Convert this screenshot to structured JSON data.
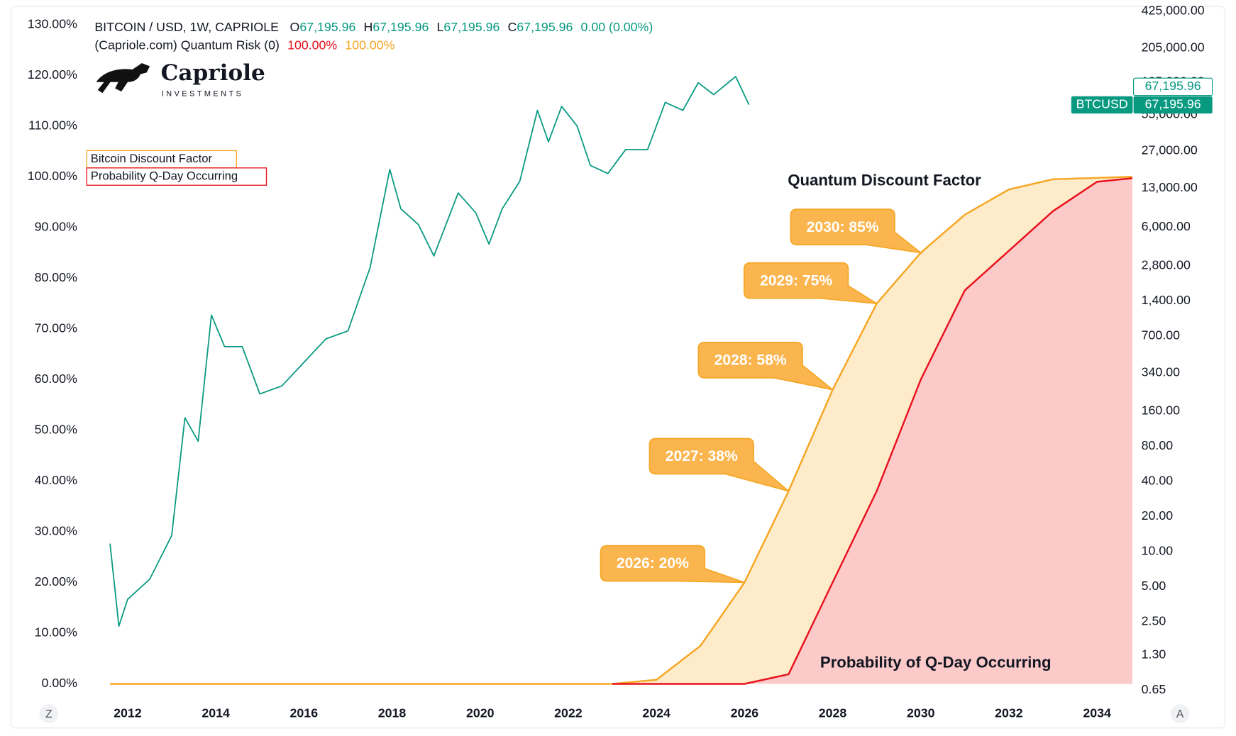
{
  "chart_data": {
    "type": "line",
    "header": {
      "ohlc": [
        {
          "key": "O",
          "value": "67,195.96"
        },
        {
          "key": "H",
          "value": "67,195.96"
        },
        {
          "key": "L",
          "value": "67,195.96"
        },
        {
          "key": "C",
          "value": "67,195.96"
        }
      ],
      "change": "0.00 (0.00%)",
      "indicator": "(Capriole.com) Quantum Risk (0)",
      "indicator_values": [
        "100.00%",
        "100.00%"
      ]
    },
    "logo": {
      "name": "Capriole",
      "tagline": "INVESTMENTS"
    },
    "annotations": [
      "Quantum Discount Factor",
      "Probability of Q-Day Occurring"
    ],
    "callouts": [
      "2026: 20%",
      "2027: 38%",
      "2028: 58%",
      "2029: 75%",
      "2030: 85%"
    ],
    "price_tags": {
      "last": "67,195.96",
      "symbol": "BTCUSD",
      "close": "67,195.96"
    },
    "buttons": [
      "Z",
      "A"
    ],
    "xlim": [
      2011.5,
      2035
    ],
    "xticks": [
      2012,
      2014,
      2016,
      2018,
      2020,
      2022,
      2024,
      2026,
      2028,
      2030,
      2032,
      2034
    ],
    "ylim": [
      0,
      130
    ],
    "yticks": [
      {
        "value": 0,
        "label": "0.00%"
      },
      {
        "value": 10,
        "label": "10.00%"
      },
      {
        "value": 20,
        "label": "20.00%"
      },
      {
        "value": 30,
        "label": "30.00%"
      },
      {
        "value": 40,
        "label": "40.00%"
      },
      {
        "value": 50,
        "label": "50.00%"
      },
      {
        "value": 60,
        "label": "60.00%"
      },
      {
        "value": 70,
        "label": "70.00%"
      },
      {
        "value": 80,
        "label": "80.00%"
      },
      {
        "value": 90,
        "label": "90.00%"
      },
      {
        "value": 100,
        "label": "100.00%"
      },
      {
        "value": 110,
        "label": "110.00%"
      },
      {
        "value": 120,
        "label": "120.00%"
      },
      {
        "value": 130,
        "label": "130.00%"
      }
    ],
    "y2lim": [
      0.65,
      425000
    ],
    "y2_log": true,
    "y2ticks": [
      {
        "value": 0.65,
        "label": "0.65"
      },
      {
        "value": 1.3,
        "label": "1.30"
      },
      {
        "value": 2.5,
        "label": "2.50"
      },
      {
        "value": 5,
        "label": "5.00"
      },
      {
        "value": 10,
        "label": "10.00"
      },
      {
        "value": 20,
        "label": "20.00"
      },
      {
        "value": 40,
        "label": "40.00"
      },
      {
        "value": 80,
        "label": "80.00"
      },
      {
        "value": 160,
        "label": "160.00"
      },
      {
        "value": 340,
        "label": "340.00"
      },
      {
        "value": 700,
        "label": "700.00"
      },
      {
        "value": 1400,
        "label": "1,400.00"
      },
      {
        "value": 2800,
        "label": "2,800.00"
      },
      {
        "value": 6000,
        "label": "6,000.00"
      },
      {
        "value": 13000,
        "label": "13,000.00"
      },
      {
        "value": 27000,
        "label": "27,000.00"
      },
      {
        "value": 55000,
        "label": "55,000.00"
      },
      {
        "value": 105000,
        "label": "105,000.00"
      },
      {
        "value": 205000,
        "label": "205,000.00"
      },
      {
        "value": 425000,
        "label": "425,000.00"
      }
    ],
    "grid": false,
    "series": [
      {
        "name": "BITCOIN / USD, 1W, CAPRIOLE",
        "color": "#089981",
        "axis": "y2",
        "x": [
          2011.6,
          2011.8,
          2012.0,
          2012.5,
          2013.0,
          2013.3,
          2013.6,
          2013.9,
          2014.2,
          2014.6,
          2015.0,
          2015.5,
          2016.0,
          2016.5,
          2017.0,
          2017.5,
          2017.95,
          2018.2,
          2018.6,
          2018.95,
          2019.5,
          2019.9,
          2020.2,
          2020.5,
          2020.9,
          2021.3,
          2021.55,
          2021.85,
          2022.2,
          2022.5,
          2022.9,
          2023.3,
          2023.8,
          2024.2,
          2024.6,
          2024.95,
          2025.3,
          2025.8,
          2026.1
        ],
        "values": [
          11.7,
          2.3,
          3.9,
          5.8,
          13.7,
          140,
          88,
          1060,
          569,
          569,
          224,
          262,
          417,
          664,
          776,
          2690,
          18750,
          8630,
          6310,
          3400,
          11800,
          7980,
          4300,
          8630,
          14860,
          60100,
          32300,
          65000,
          44100,
          20300,
          17300,
          27700,
          27700,
          70300,
          60100,
          103500,
          82000,
          117000,
          67195.96
        ]
      },
      {
        "name": "Bitcoin Discount Factor",
        "color": "#f5a623",
        "fill_color": "#fdebc9",
        "x": [
          2011.6,
          2023,
          2024,
          2025,
          2026,
          2027,
          2028,
          2029,
          2030,
          2031,
          2032,
          2033,
          2034.8
        ],
        "values": [
          0,
          0,
          0.8,
          7.5,
          20,
          38,
          58,
          75,
          85,
          92.5,
          97.5,
          99.5,
          100
        ]
      },
      {
        "name": "Probability Q-Day Occurring",
        "color": "#e8111d",
        "fill_color": "#fdcaca",
        "x": [
          2023,
          2026,
          2027,
          2028,
          2029,
          2030,
          2031,
          2032,
          2033,
          2034,
          2034.8
        ],
        "values": [
          0,
          0,
          1.9,
          20,
          38,
          60,
          77.6,
          85.4,
          93.2,
          99,
          99.7
        ]
      }
    ]
  }
}
